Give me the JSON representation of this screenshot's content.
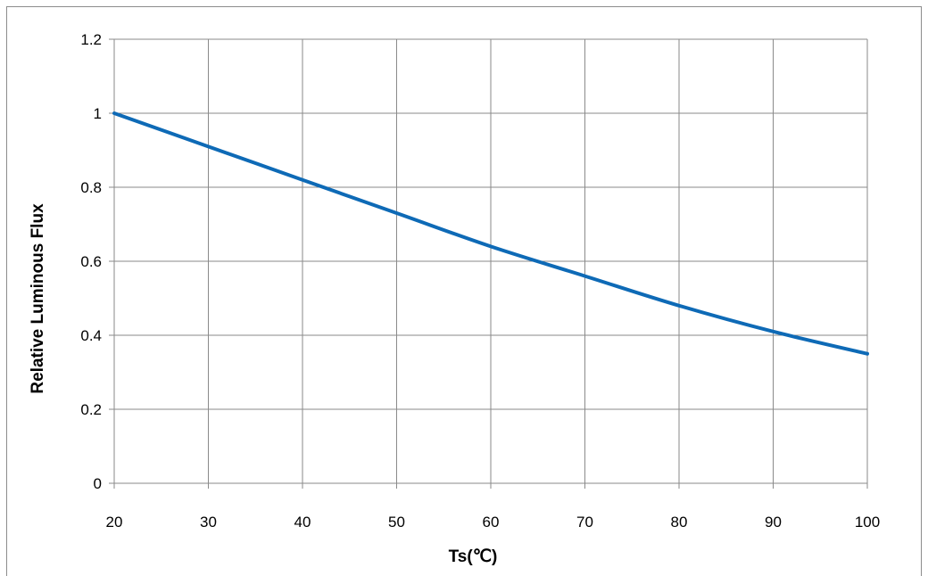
{
  "chart_data": {
    "type": "line",
    "title": "",
    "xlabel": "Ts(℃)",
    "ylabel": "Relative Luminous Flux",
    "xlim": [
      20,
      100
    ],
    "ylim": [
      0,
      1.2
    ],
    "x_ticks": [
      "20",
      "30",
      "40",
      "50",
      "60",
      "70",
      "80",
      "90",
      "100"
    ],
    "y_ticks": [
      "0",
      "0.2",
      "0.4",
      "0.6",
      "0.8",
      "1",
      "1.2"
    ],
    "grid": true,
    "legend": "none",
    "series": [
      {
        "color": "#0e6ab6",
        "x": [
          20,
          30,
          40,
          50,
          60,
          70,
          80,
          90,
          100
        ],
        "y": [
          1.0,
          0.91,
          0.82,
          0.73,
          0.64,
          0.56,
          0.48,
          0.41,
          0.35
        ]
      }
    ]
  }
}
